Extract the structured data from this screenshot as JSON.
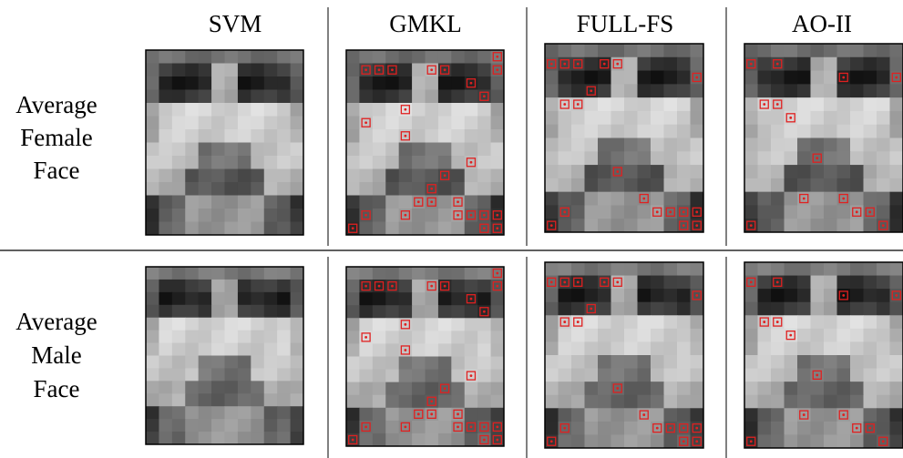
{
  "columns": [
    "SVM",
    "GMKL",
    "FULL-FS",
    "AO-II"
  ],
  "rows": [
    {
      "lines": [
        "Average",
        "Female",
        "Face"
      ]
    },
    {
      "lines": [
        "Average",
        "Male",
        "Face"
      ]
    }
  ]
}
